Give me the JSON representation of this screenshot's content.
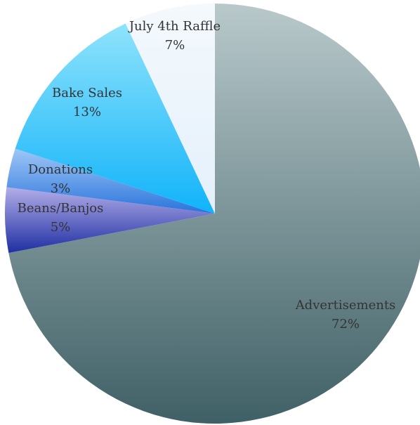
{
  "chart_data": {
    "type": "pie",
    "start_angle_deg": 0,
    "direction": "clockwise",
    "slices": [
      {
        "label": "Advertisements",
        "percent_label": "72%",
        "value": 72,
        "gradient": [
          "#b9c9cb",
          "#3f6066"
        ]
      },
      {
        "label": "Beans/Banjos",
        "percent_label": "5%",
        "value": 5,
        "gradient": [
          "#b3aee9",
          "#1f2fa3"
        ]
      },
      {
        "label": "Donations",
        "percent_label": "3%",
        "value": 3,
        "gradient": [
          "#9fc7f6",
          "#2a74dc"
        ]
      },
      {
        "label": "Bake Sales",
        "percent_label": "13%",
        "value": 13,
        "gradient": [
          "#8fe3fb",
          "#11b3fa"
        ]
      },
      {
        "label": "July 4th Raffle",
        "percent_label": "7%",
        "value": 7,
        "gradient": [
          "#f4f9fd",
          "#e4f0fb"
        ]
      }
    ]
  }
}
